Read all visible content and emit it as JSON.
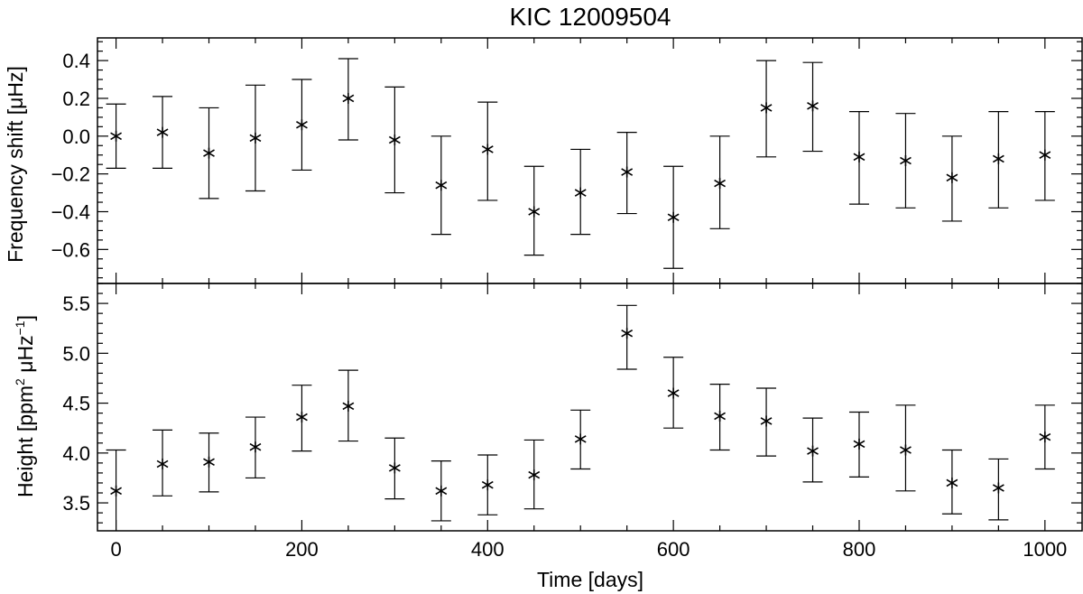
{
  "chart_data": [
    {
      "type": "scatter",
      "title": "KIC 12009504",
      "ylabel": "Frequency shift [μHz]",
      "xlabel": "",
      "xlim": [
        -20,
        1040
      ],
      "ylim": [
        -0.78,
        0.52
      ],
      "yticks": [
        0.4,
        0.2,
        0.0,
        -0.2,
        -0.4,
        -0.6
      ],
      "ytick_labels": [
        "0.4",
        "0.2",
        "0.0",
        "−0.2",
        "−0.4",
        "−0.6"
      ],
      "marker": "asterisk",
      "error_bars": true,
      "points": [
        {
          "x": 0,
          "y": 0.0,
          "lo": -0.17,
          "hi": 0.17
        },
        {
          "x": 50,
          "y": 0.02,
          "lo": -0.17,
          "hi": 0.21
        },
        {
          "x": 100,
          "y": -0.09,
          "lo": -0.33,
          "hi": 0.15
        },
        {
          "x": 150,
          "y": -0.01,
          "lo": -0.29,
          "hi": 0.27
        },
        {
          "x": 200,
          "y": 0.06,
          "lo": -0.18,
          "hi": 0.3
        },
        {
          "x": 250,
          "y": 0.2,
          "lo": -0.02,
          "hi": 0.41
        },
        {
          "x": 300,
          "y": -0.02,
          "lo": -0.3,
          "hi": 0.26
        },
        {
          "x": 350,
          "y": -0.26,
          "lo": -0.52,
          "hi": 0.0
        },
        {
          "x": 400,
          "y": -0.07,
          "lo": -0.34,
          "hi": 0.18
        },
        {
          "x": 450,
          "y": -0.4,
          "lo": -0.63,
          "hi": -0.16
        },
        {
          "x": 500,
          "y": -0.3,
          "lo": -0.52,
          "hi": -0.07
        },
        {
          "x": 550,
          "y": -0.19,
          "lo": -0.41,
          "hi": 0.02
        },
        {
          "x": 600,
          "y": -0.43,
          "lo": -0.7,
          "hi": -0.16
        },
        {
          "x": 650,
          "y": -0.25,
          "lo": -0.49,
          "hi": 0.0
        },
        {
          "x": 700,
          "y": 0.15,
          "lo": -0.11,
          "hi": 0.4
        },
        {
          "x": 750,
          "y": 0.16,
          "lo": -0.08,
          "hi": 0.39
        },
        {
          "x": 800,
          "y": -0.11,
          "lo": -0.36,
          "hi": 0.13
        },
        {
          "x": 850,
          "y": -0.13,
          "lo": -0.38,
          "hi": 0.12
        },
        {
          "x": 900,
          "y": -0.22,
          "lo": -0.45,
          "hi": 0.0
        },
        {
          "x": 950,
          "y": -0.12,
          "lo": -0.38,
          "hi": 0.13
        },
        {
          "x": 1000,
          "y": -0.1,
          "lo": -0.34,
          "hi": 0.13
        }
      ]
    },
    {
      "type": "scatter",
      "title": "",
      "ylabel_main": "Height [ppm",
      "ylabel_sup1": "2",
      "ylabel_mid": " μHz",
      "ylabel_sup2": "−1",
      "ylabel_end": "]",
      "xlabel": "Time [days]",
      "xlim": [
        -20,
        1040
      ],
      "ylim": [
        3.22,
        5.7
      ],
      "xticks": [
        0,
        200,
        400,
        600,
        800,
        1000
      ],
      "xtick_labels": [
        "0",
        "200",
        "400",
        "600",
        "800",
        "1000"
      ],
      "yticks": [
        5.5,
        5.0,
        4.5,
        4.0,
        3.5
      ],
      "ytick_labels": [
        "5.5",
        "5.0",
        "4.5",
        "4.0",
        "3.5"
      ],
      "marker": "asterisk",
      "error_bars": true,
      "points": [
        {
          "x": 0,
          "y": 3.62,
          "lo": 3.21,
          "hi": 4.03
        },
        {
          "x": 50,
          "y": 3.89,
          "lo": 3.57,
          "hi": 4.23
        },
        {
          "x": 100,
          "y": 3.91,
          "lo": 3.61,
          "hi": 4.2
        },
        {
          "x": 150,
          "y": 4.06,
          "lo": 3.75,
          "hi": 4.36
        },
        {
          "x": 200,
          "y": 4.36,
          "lo": 4.02,
          "hi": 4.68
        },
        {
          "x": 250,
          "y": 4.47,
          "lo": 4.12,
          "hi": 4.83
        },
        {
          "x": 300,
          "y": 3.85,
          "lo": 3.54,
          "hi": 4.15
        },
        {
          "x": 350,
          "y": 3.62,
          "lo": 3.32,
          "hi": 3.92
        },
        {
          "x": 400,
          "y": 3.68,
          "lo": 3.38,
          "hi": 3.98
        },
        {
          "x": 450,
          "y": 3.78,
          "lo": 3.44,
          "hi": 4.13
        },
        {
          "x": 500,
          "y": 4.14,
          "lo": 3.84,
          "hi": 4.43
        },
        {
          "x": 550,
          "y": 5.2,
          "lo": 4.84,
          "hi": 5.48
        },
        {
          "x": 600,
          "y": 4.6,
          "lo": 4.25,
          "hi": 4.96
        },
        {
          "x": 650,
          "y": 4.37,
          "lo": 4.03,
          "hi": 4.69
        },
        {
          "x": 700,
          "y": 4.32,
          "lo": 3.97,
          "hi": 4.65
        },
        {
          "x": 750,
          "y": 4.02,
          "lo": 3.71,
          "hi": 4.35
        },
        {
          "x": 800,
          "y": 4.09,
          "lo": 3.76,
          "hi": 4.41
        },
        {
          "x": 850,
          "y": 4.03,
          "lo": 3.62,
          "hi": 4.48
        },
        {
          "x": 900,
          "y": 3.7,
          "lo": 3.39,
          "hi": 4.03
        },
        {
          "x": 950,
          "y": 3.65,
          "lo": 3.33,
          "hi": 3.94
        },
        {
          "x": 1000,
          "y": 4.16,
          "lo": 3.84,
          "hi": 4.48
        }
      ]
    }
  ]
}
